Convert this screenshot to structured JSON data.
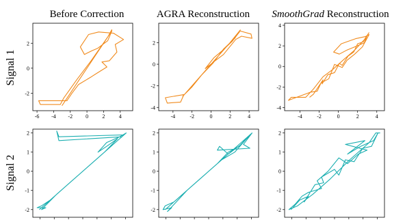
{
  "columns": [
    {
      "title": "Before Correction",
      "italic": ""
    },
    {
      "title": " Reconstruction",
      "italic": "",
      "prefix": "AGRA"
    },
    {
      "title": " Reconstruction",
      "italic": "SmoothGrad",
      "prefix": ""
    }
  ],
  "rows": [
    {
      "label": "Signal 1"
    },
    {
      "label": "Signal 2"
    }
  ],
  "colors": {
    "signal1": "#f08a1c",
    "signal2": "#1aaeb0"
  },
  "chart_data": [
    {
      "type": "line",
      "row": 0,
      "col": 0,
      "xlim": [
        -6.5,
        5.5
      ],
      "ylim": [
        -3.4,
        3.6
      ],
      "xticks": [
        "-6",
        "-4",
        "-2",
        "0",
        "2",
        "4"
      ],
      "yticks": [
        "-2",
        "0",
        "2"
      ],
      "series": [
        {
          "values": [
            [
              -3,
              -3
            ],
            [
              -2,
              -2
            ],
            [
              -1,
              -1
            ],
            [
              0,
              0
            ],
            [
              1,
              1
            ],
            [
              2,
              2
            ],
            [
              3,
              3
            ],
            [
              2.5,
              2.2
            ],
            [
              1.3,
              1.6
            ],
            [
              0.6,
              1.4
            ],
            [
              -0.3,
              1.1
            ],
            [
              -0.8,
              1.7
            ],
            [
              0.2,
              2.7
            ],
            [
              1.4,
              2.9
            ],
            [
              3.2,
              2.8
            ],
            [
              4.4,
              2.3
            ],
            [
              3.4,
              1.9
            ],
            [
              3.6,
              1.3
            ],
            [
              2.7,
              0.6
            ],
            [
              1.8,
              0.5
            ],
            [
              2.4,
              0.1
            ],
            [
              1.2,
              -0.4
            ],
            [
              0.5,
              -0.7
            ],
            [
              -1,
              -1.3
            ],
            [
              -1.8,
              -2
            ],
            [
              -2.3,
              -2.5
            ],
            [
              -2.4,
              -2.6
            ],
            [
              -5.8,
              -2.6
            ],
            [
              -5.6,
              -2.9
            ],
            [
              -3.2,
              -2.9
            ],
            [
              -2.8,
              -2.4
            ],
            [
              -1.2,
              -0.9
            ],
            [
              0.5,
              0.6
            ],
            [
              2.5,
              2.5
            ],
            [
              3,
              3.1
            ]
          ]
        }
      ]
    },
    {
      "type": "line",
      "row": 0,
      "col": 1,
      "xlim": [
        -5.5,
        5.0
      ],
      "ylim": [
        -4.3,
        3.8
      ],
      "xticks": [
        "-4",
        "-2",
        "0",
        "2",
        "4"
      ],
      "yticks": [
        "-4",
        "-2",
        "0",
        "2"
      ],
      "series": [
        {
          "values": [
            [
              -3,
              -3
            ],
            [
              -2,
              -2
            ],
            [
              -1,
              -1
            ],
            [
              0,
              0
            ],
            [
              1,
              1
            ],
            [
              2,
              2
            ],
            [
              3,
              3
            ],
            [
              2.2,
              2.1
            ],
            [
              1.1,
              1.2
            ],
            [
              0.3,
              0.6
            ],
            [
              -0.6,
              -0.4
            ],
            [
              0.4,
              0.3
            ],
            [
              1.3,
              0.9
            ],
            [
              2.6,
              2.3
            ],
            [
              3.2,
              2.6
            ],
            [
              4.3,
              2.4
            ],
            [
              4.2,
              2.8
            ],
            [
              3.0,
              3.1
            ],
            [
              2.5,
              2.4
            ],
            [
              1.3,
              1.4
            ],
            [
              0.2,
              0.1
            ],
            [
              -1,
              -1
            ],
            [
              -2,
              -2.1
            ],
            [
              -2.8,
              -2.8
            ],
            [
              -4.8,
              -3.1
            ],
            [
              -4.6,
              -3.6
            ],
            [
              -3.2,
              -3.5
            ],
            [
              -2.9,
              -2.9
            ],
            [
              -1.8,
              -1.8
            ],
            [
              0,
              0
            ],
            [
              2,
              2
            ],
            [
              3.1,
              3.2
            ]
          ]
        }
      ]
    },
    {
      "type": "line",
      "row": 0,
      "col": 2,
      "xlim": [
        -5.6,
        4.8
      ],
      "ylim": [
        -4.3,
        4.2
      ],
      "xticks": [
        "-4",
        "-2",
        "0",
        "2",
        "4"
      ],
      "yticks": [
        "-4",
        "-2",
        "0",
        "2",
        "4"
      ],
      "series": [
        {
          "values": [
            [
              -3,
              -3
            ],
            [
              -2.6,
              -2.7
            ],
            [
              -2.1,
              -2.0
            ],
            [
              -1.6,
              -1.3
            ],
            [
              -1.7,
              -1.7
            ],
            [
              -1.1,
              -0.8
            ],
            [
              -0.4,
              -0.6
            ],
            [
              0.1,
              0.3
            ],
            [
              0.4,
              0.1
            ],
            [
              1.0,
              1.0
            ],
            [
              1.6,
              1.4
            ],
            [
              2.0,
              2.2
            ],
            [
              2.6,
              2.4
            ],
            [
              3.0,
              3.0
            ],
            [
              2.7,
              2.3
            ],
            [
              1.7,
              1.9
            ],
            [
              0.9,
              1.6
            ],
            [
              0.1,
              1.2
            ],
            [
              -0.5,
              1.4
            ],
            [
              0.3,
              2.2
            ],
            [
              1.8,
              2.7
            ],
            [
              2.8,
              2.9
            ],
            [
              3.2,
              3.1
            ],
            [
              2.5,
              1.9
            ],
            [
              1.7,
              1.2
            ],
            [
              0.9,
              0.6
            ],
            [
              0.4,
              -0.1
            ],
            [
              -0.4,
              0.2
            ],
            [
              -1.0,
              -1.2
            ],
            [
              -1.8,
              -1.6
            ],
            [
              -2.2,
              -2.4
            ],
            [
              -2.9,
              -2.5
            ],
            [
              -5.2,
              -3.3
            ],
            [
              -4.9,
              -3.0
            ],
            [
              -3.4,
              -3.0
            ],
            [
              -2.6,
              -2.2
            ],
            [
              -1.6,
              -1.0
            ],
            [
              -0.6,
              -0.3
            ],
            [
              0.6,
              0.7
            ],
            [
              1.7,
              1.6
            ],
            [
              2.7,
              2.6
            ],
            [
              3.2,
              3.3
            ]
          ]
        }
      ]
    },
    {
      "type": "line",
      "row": 1,
      "col": 0,
      "xlim": [
        -2.3,
        2.3
      ],
      "ylim": [
        -2.4,
        2.2
      ],
      "xticks": [
        "",
        "",
        "",
        "",
        "",
        "",
        ""
      ],
      "yticks": [
        "-2",
        "-1",
        "0",
        "1",
        "2"
      ],
      "series": [
        {
          "values": [
            [
              -2,
              -2
            ],
            [
              -1.5,
              -1.5
            ],
            [
              -1,
              -1
            ],
            [
              -0.5,
              -0.5
            ],
            [
              0,
              0
            ],
            [
              0.5,
              0.5
            ],
            [
              1,
              1
            ],
            [
              1.5,
              1.5
            ],
            [
              2,
              2
            ],
            [
              1.7,
              1.8
            ],
            [
              1.1,
              1.5
            ],
            [
              0.7,
              1.0
            ],
            [
              1.1,
              1.3
            ],
            [
              1.6,
              1.7
            ],
            [
              1.0,
              1.0
            ],
            [
              0.3,
              0.3
            ],
            [
              -0.4,
              -0.4
            ],
            [
              -1.1,
              -1.1
            ],
            [
              -1.5,
              -1.5
            ],
            [
              -1.9,
              -1.8
            ],
            [
              -2.1,
              -1.9
            ],
            [
              -1.7,
              -1.9
            ],
            [
              -1.9,
              -2.0
            ],
            [
              -1.2,
              -1.2
            ],
            [
              -0.3,
              -0.3
            ],
            [
              0.6,
              0.6
            ],
            [
              1.4,
              1.4
            ],
            [
              1.9,
              1.9
            ],
            [
              -1.1,
              1.8
            ],
            [
              -1.2,
              2.1
            ],
            [
              -1.1,
              1.6
            ],
            [
              1.8,
              1.8
            ],
            [
              2.0,
              2.0
            ]
          ]
        }
      ]
    },
    {
      "type": "line",
      "row": 1,
      "col": 1,
      "xlim": [
        -2.3,
        2.3
      ],
      "ylim": [
        -2.4,
        2.2
      ],
      "xticks": [
        "",
        "",
        "",
        "",
        "",
        "",
        ""
      ],
      "yticks": [
        "-2",
        "-1",
        "0",
        "1",
        "2"
      ],
      "series": [
        {
          "values": [
            [
              -2,
              -2
            ],
            [
              -1.5,
              -1.5
            ],
            [
              -1,
              -1
            ],
            [
              -0.5,
              -0.5
            ],
            [
              0,
              0
            ],
            [
              0.5,
              0.5
            ],
            [
              1,
              1
            ],
            [
              1.5,
              1.5
            ],
            [
              2,
              2
            ],
            [
              1.5,
              1.4
            ],
            [
              0.9,
              0.9
            ],
            [
              0.4,
              0.4
            ],
            [
              0.9,
              1.0
            ],
            [
              1.4,
              1.3
            ],
            [
              1.9,
              1.9
            ],
            [
              1.2,
              1.0
            ],
            [
              0.6,
              0.6
            ],
            [
              -0.2,
              -0.2
            ],
            [
              -1.0,
              -1.0
            ],
            [
              -1.6,
              -1.6
            ],
            [
              -2.0,
              -1.8
            ],
            [
              -2.1,
              -2.0
            ],
            [
              -1.7,
              -1.9
            ],
            [
              -1.9,
              -2.1
            ],
            [
              -1.0,
              -1.0
            ],
            [
              0.0,
              0.0
            ],
            [
              0.9,
              0.9
            ],
            [
              0.5,
              1.3
            ],
            [
              0.4,
              1.1
            ],
            [
              1.9,
              1.2
            ],
            [
              1.6,
              1.4
            ],
            [
              2.0,
              2.0
            ]
          ]
        }
      ]
    },
    {
      "type": "line",
      "row": 1,
      "col": 2,
      "xlim": [
        -2.3,
        2.3
      ],
      "ylim": [
        -2.4,
        2.2
      ],
      "xticks": [
        "",
        "",
        "",
        "",
        "",
        "",
        ""
      ],
      "yticks": [
        "-2",
        "-1",
        "0",
        "1",
        "2"
      ],
      "series": [
        {
          "values": [
            [
              -2,
              -2
            ],
            [
              -1.6,
              -1.5
            ],
            [
              -1.2,
              -1.3
            ],
            [
              -1.4,
              -1.6
            ],
            [
              -0.9,
              -0.7
            ],
            [
              -0.5,
              -0.6
            ],
            [
              -0.6,
              -0.3
            ],
            [
              0.0,
              0.1
            ],
            [
              0.2,
              -0.2
            ],
            [
              0.5,
              0.6
            ],
            [
              0.9,
              0.5
            ],
            [
              1.3,
              1.2
            ],
            [
              1.7,
              1.3
            ],
            [
              2.0,
              2.0
            ],
            [
              1.8,
              1.6
            ],
            [
              1.2,
              1.3
            ],
            [
              0.6,
              0.9
            ],
            [
              1.4,
              1.6
            ],
            [
              0.5,
              1.4
            ],
            [
              1.5,
              1.1
            ],
            [
              1.1,
              0.9
            ],
            [
              0.6,
              0.4
            ],
            [
              0.2,
              0.7
            ],
            [
              -0.3,
              0.0
            ],
            [
              -0.8,
              -0.5
            ],
            [
              -0.6,
              -0.9
            ],
            [
              -1.2,
              -1.1
            ],
            [
              -1.5,
              -1.3
            ],
            [
              -1.8,
              -1.7
            ],
            [
              -2.1,
              -2.0
            ],
            [
              -1.7,
              -1.8
            ],
            [
              -1.0,
              -1.2
            ],
            [
              -0.2,
              -0.4
            ],
            [
              0.7,
              0.6
            ],
            [
              1.6,
              1.5
            ],
            [
              1.9,
              2.0
            ],
            [
              2.1,
              2.0
            ]
          ]
        }
      ]
    }
  ]
}
